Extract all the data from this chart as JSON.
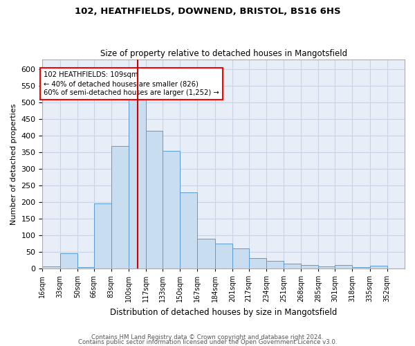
{
  "title1": "102, HEATHFIELDS, DOWNEND, BRISTOL, BS16 6HS",
  "title2": "Size of property relative to detached houses in Mangotsfield",
  "xlabel": "Distribution of detached houses by size in Mangotsfield",
  "ylabel": "Number of detached properties",
  "annotation_line1": "102 HEATHFIELDS: 109sqm",
  "annotation_line2": "← 40% of detached houses are smaller (826)",
  "annotation_line3": "60% of semi-detached houses are larger (1,252) →",
  "footer1": "Contains HM Land Registry data © Crown copyright and database right 2024.",
  "footer2": "Contains public sector information licensed under the Open Government Licence v3.0.",
  "bar_left_edges": [
    16,
    33,
    50,
    66,
    83,
    100,
    117,
    133,
    150,
    167,
    184,
    201,
    217,
    234,
    251,
    268,
    285,
    301,
    318,
    335
  ],
  "bar_widths": [
    17,
    17,
    16,
    17,
    17,
    17,
    16,
    17,
    17,
    17,
    17,
    16,
    17,
    17,
    17,
    17,
    16,
    17,
    17,
    17
  ],
  "bar_heights": [
    5,
    45,
    3,
    195,
    370,
    520,
    415,
    355,
    230,
    90,
    75,
    60,
    30,
    22,
    15,
    10,
    5,
    10,
    3,
    8
  ],
  "bar_face_color": "#c8ddef",
  "bar_edge_color": "#5b9bd5",
  "vline_x": 109,
  "vline_color": "#cc0000",
  "grid_color": "#c8d4e4",
  "bg_color": "#e8eef8",
  "ylim": [
    0,
    630
  ],
  "yticks": [
    0,
    50,
    100,
    150,
    200,
    250,
    300,
    350,
    400,
    450,
    500,
    550,
    600
  ],
  "xtick_labels": [
    "16sqm",
    "33sqm",
    "50sqm",
    "66sqm",
    "83sqm",
    "100sqm",
    "117sqm",
    "133sqm",
    "150sqm",
    "167sqm",
    "184sqm",
    "201sqm",
    "217sqm",
    "234sqm",
    "251sqm",
    "268sqm",
    "285sqm",
    "301sqm",
    "318sqm",
    "335sqm",
    "352sqm"
  ]
}
